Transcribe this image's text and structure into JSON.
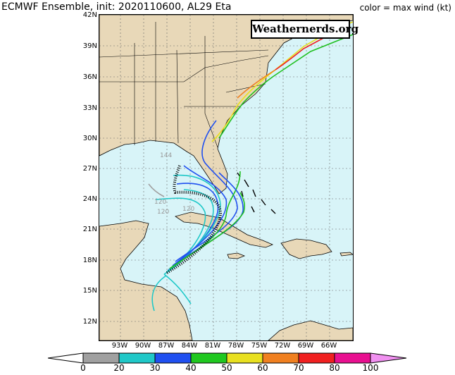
{
  "header": {
    "title": "ECMWF Ensemble, init: 2020110600, AL29 Eta",
    "color_note": "color = max wind (kt)"
  },
  "watermark": "Weathernerds.org",
  "map": {
    "lat_labels": [
      "42N",
      "39N",
      "36N",
      "33N",
      "30N",
      "27N",
      "24N",
      "21N",
      "18N",
      "15N",
      "12N"
    ],
    "lon_labels": [
      "93W",
      "90W",
      "87W",
      "84W",
      "81W",
      "78W",
      "75W",
      "72W",
      "69W",
      "66W"
    ],
    "track_annotations": [
      "144",
      "120",
      "120",
      "120"
    ],
    "land_color": "#e8d8b8",
    "ocean_color": "#d8f4f8"
  },
  "colorbar": {
    "ticks": [
      "0",
      "20",
      "30",
      "40",
      "50",
      "60",
      "70",
      "80",
      "100"
    ],
    "colors": [
      "#a0a0a0",
      "#20c8c8",
      "#2050f0",
      "#20c820",
      "#e8e020",
      "#f08020",
      "#f02020",
      "#e81090",
      "#f090f0"
    ]
  }
}
